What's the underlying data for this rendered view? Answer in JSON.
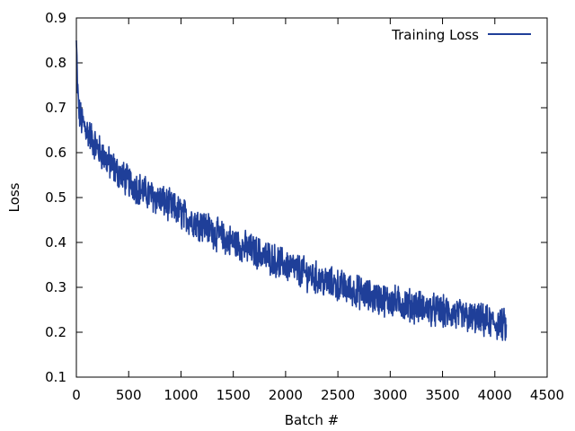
{
  "chart_data": {
    "type": "line",
    "xlabel": "Batch #",
    "ylabel": "Loss",
    "xlim": [
      0,
      4500
    ],
    "ylim": [
      0.1,
      0.9
    ],
    "xticks": [
      0,
      500,
      1000,
      1500,
      2000,
      2500,
      3000,
      3500,
      4000,
      4500
    ],
    "yticks": [
      0.1,
      0.2,
      0.3,
      0.4,
      0.5,
      0.6,
      0.7,
      0.8,
      0.9
    ],
    "xtick_labels": [
      "0",
      "500",
      "1000",
      "1500",
      "2000",
      "2500",
      "3000",
      "3500",
      "4000",
      "4500"
    ],
    "ytick_labels": [
      "0.1",
      "0.2",
      "0.3",
      "0.4",
      "0.5",
      "0.6",
      "0.7",
      "0.8",
      "0.9"
    ],
    "grid": false,
    "legend_position": "top-right",
    "series": [
      {
        "name": "Training Loss",
        "color": "#1f3f99",
        "x": [
          0,
          10,
          25,
          50,
          100,
          200,
          300,
          400,
          500,
          600,
          700,
          800,
          900,
          1000,
          1100,
          1200,
          1300,
          1400,
          1500,
          1600,
          1700,
          1800,
          1900,
          2000,
          2100,
          2200,
          2300,
          2400,
          2500,
          2600,
          2700,
          2800,
          2900,
          3000,
          3100,
          3200,
          3300,
          3400,
          3500,
          3600,
          3700,
          3800,
          3900,
          4000,
          4100,
          4110
        ],
        "y": [
          0.85,
          0.75,
          0.69,
          0.67,
          0.65,
          0.61,
          0.58,
          0.555,
          0.535,
          0.52,
          0.505,
          0.495,
          0.48,
          0.465,
          0.45,
          0.44,
          0.425,
          0.41,
          0.4,
          0.39,
          0.38,
          0.37,
          0.36,
          0.35,
          0.34,
          0.33,
          0.32,
          0.31,
          0.305,
          0.295,
          0.29,
          0.28,
          0.275,
          0.27,
          0.265,
          0.26,
          0.255,
          0.25,
          0.245,
          0.24,
          0.235,
          0.23,
          0.225,
          0.22,
          0.215,
          0.2
        ]
      }
    ]
  }
}
